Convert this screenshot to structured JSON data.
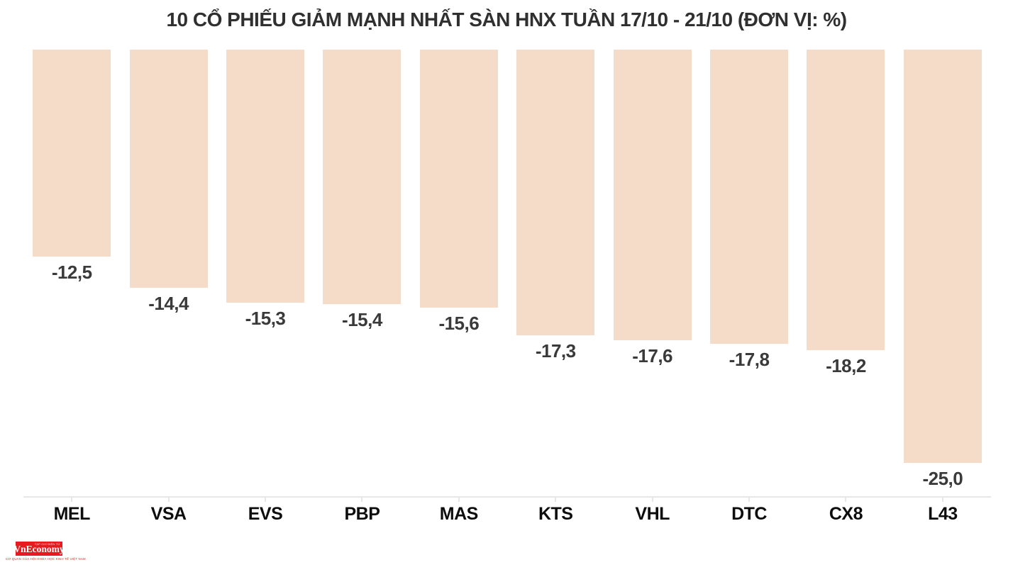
{
  "title": "10 CỔ PHIẾU GIẢM MẠNH NHẤT SÀN HNX TUẦN 17/10 - 21/10 (ĐƠN VỊ: %)",
  "chart_data": {
    "type": "bar",
    "orientation": "vertical",
    "baseline": "top",
    "title": "10 CỔ PHIẾU GIẢM MẠNH NHẤT SÀN HNX TUẦN 17/10 - 21/10 (ĐƠN VỊ: %)",
    "unit": "%",
    "categories": [
      "MEL",
      "VSA",
      "EVS",
      "PBP",
      "MAS",
      "KTS",
      "VHL",
      "DTC",
      "CX8",
      "L43"
    ],
    "values": [
      -12.5,
      -14.4,
      -15.3,
      -15.4,
      -15.6,
      -17.3,
      -17.6,
      -17.8,
      -18.2,
      -25.0
    ],
    "value_labels": [
      "-12,5",
      "-14,4",
      "-15,3",
      "-15,4",
      "-15,6",
      "-17,3",
      "-17,6",
      "-17,8",
      "-18,2",
      "-25,0"
    ],
    "xlabel": "",
    "ylabel": "",
    "ylim": [
      -27,
      0
    ],
    "grid": false,
    "legend": false,
    "bar_color": "#f5dcc9",
    "value_label_color": "#3a3a3a",
    "category_label_color": "#0d0d0d",
    "axis_color": "#e7e7e7",
    "title_color": "#303030"
  },
  "logo": {
    "top_text": "TẠP CHÍ ĐIỆN TỬ",
    "name": "VnEconomy",
    "tagline": "CƠ QUAN CỦA HỘI KHOA HỌC KINH TẾ VIỆT NAM",
    "bg_color": "#e8191f",
    "text_color": "#ffffff"
  }
}
